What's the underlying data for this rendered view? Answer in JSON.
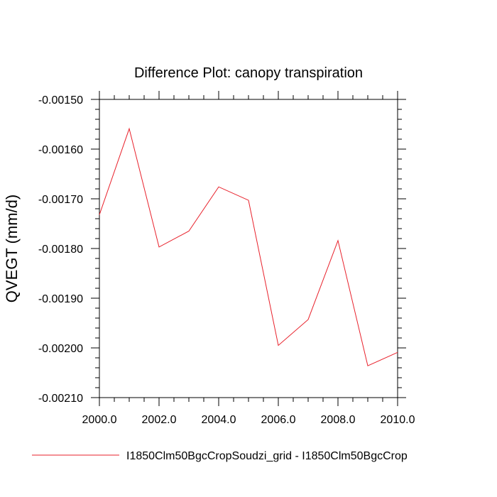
{
  "chart_data": {
    "type": "line",
    "title": "Difference Plot: canopy transpiration",
    "ylabel": "QVEGT  (mm/d)",
    "xlabel": "",
    "xlim": [
      2000.0,
      2010.0
    ],
    "ylim": [
      -0.0021,
      -0.0015
    ],
    "x_ticks": [
      2000,
      2002,
      2004,
      2006,
      2008,
      2010
    ],
    "x_tick_labels": [
      "2000.0",
      "2002.0",
      "2004.0",
      "2006.0",
      "2008.0",
      "2010.0"
    ],
    "y_ticks": [
      -0.0015,
      -0.0016,
      -0.0017,
      -0.0018,
      -0.0019,
      -0.002,
      -0.0021
    ],
    "y_tick_labels": [
      "-0.00150",
      "-0.00160",
      "-0.00170",
      "-0.00180",
      "-0.00190",
      "-0.00200",
      "-0.00210"
    ],
    "grid": false,
    "legend_position": "bottom",
    "series": [
      {
        "name": "I1850Clm50BgcCropSoudzi_grid - I1850Clm50BgcCrop",
        "color": "#e8212b",
        "x": [
          2000,
          2001,
          2002,
          2003,
          2004,
          2005,
          2006,
          2007,
          2008,
          2009,
          2010
        ],
        "values": [
          -0.001732,
          -0.001559,
          -0.001797,
          -0.001765,
          -0.001676,
          -0.001703,
          -0.001995,
          -0.001943,
          -0.001784,
          -0.002036,
          -0.002009
        ]
      }
    ]
  }
}
